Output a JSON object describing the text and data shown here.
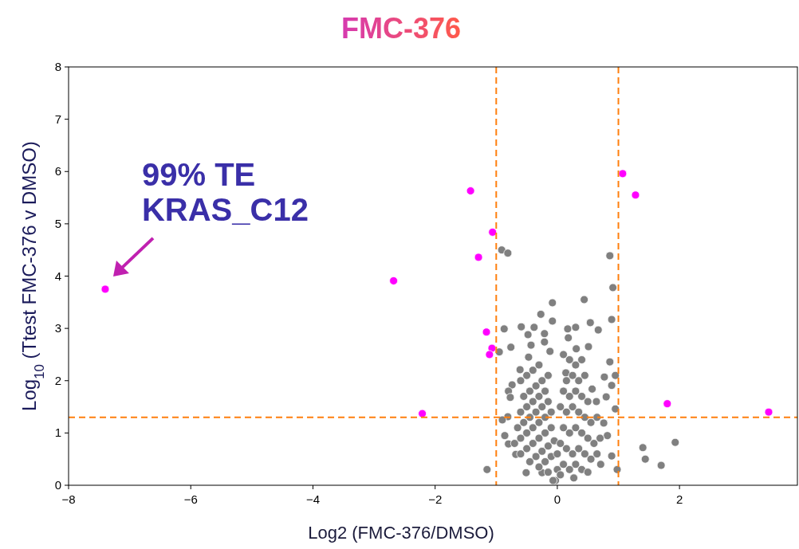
{
  "chart_data": {
    "type": "scatter",
    "title": "FMC-376",
    "xlabel": "Log2 (FMC-376/DMSO)",
    "ylabel": "Log$_{10}$ (Ttest FMC-376 v DMSO)",
    "annotations": [
      {
        "text": "99% TE\nKRAS_C12",
        "x": -7.4,
        "y": 3.75
      }
    ],
    "xlim": [
      -8,
      3.93
    ],
    "ylim": [
      0,
      8
    ],
    "xticks": [
      {
        "value": -8,
        "label": "−8"
      },
      {
        "value": -6,
        "label": "−6"
      },
      {
        "value": -4,
        "label": "−4"
      },
      {
        "value": -2,
        "label": "−2"
      },
      0,
      2
    ],
    "yticks": [
      0,
      1,
      2,
      3,
      4,
      5,
      6,
      7,
      8
    ],
    "grid": false,
    "marker": "circle",
    "ref_lines": [
      {
        "axis": "x",
        "value": -1,
        "color": "#ff7f0e",
        "line_style": "dashed"
      },
      {
        "axis": "x",
        "value": 1,
        "color": "#ff7f0e",
        "line_style": "dashed"
      },
      {
        "axis": "y",
        "value": 1.3,
        "color": "#ff7f0e",
        "line_style": "dashed"
      }
    ],
    "series": [
      {
        "color": "#808080",
        "x": [
          -0.91,
          -0.81,
          -0.08,
          -0.27,
          -0.08,
          -0.87,
          -0.59,
          -0.38,
          -0.48,
          -0.21,
          -0.21,
          -0.76,
          -0.95,
          -0.43,
          -0.47,
          -0.12,
          -0.81,
          -0.9,
          -0.86,
          -1.15,
          -0.74,
          -0.8,
          -0.77,
          -0.61,
          -0.8,
          -0.68,
          -0.51,
          -0.25,
          -0.03,
          0.86,
          0.91,
          0.44,
          0.89,
          0.54,
          0.67,
          0.17,
          0.3,
          0.51,
          0.86,
          0.77,
          0.95,
          0.89,
          0.8,
          0.95,
          0.82,
          0.89,
          0.71,
          0.98,
          0.14,
          0.57,
          0.64,
          0.76,
          0.27,
          -0.07,
          0.18,
          0.31,
          1.4,
          1.44,
          1.7,
          1.93,
          -0.6,
          -0.5,
          -0.4,
          -0.3,
          -0.55,
          -0.45,
          -0.35,
          -0.25,
          -0.15,
          -0.6,
          -0.5,
          -0.4,
          -0.3,
          -0.2,
          -0.65,
          -0.55,
          -0.45,
          -0.35,
          -0.25,
          -0.15,
          -0.7,
          -0.6,
          -0.5,
          -0.4,
          -0.3,
          -0.2,
          -0.1,
          -0.6,
          -0.5,
          -0.4,
          -0.3,
          -0.2,
          -0.1,
          -0.45,
          -0.35,
          -0.25,
          -0.15,
          -0.05,
          -0.3,
          -0.2,
          -0.1,
          -0.15,
          0.1,
          0.2,
          0.3,
          0.4,
          0.15,
          0.25,
          0.35,
          0.45,
          0.1,
          0.2,
          0.3,
          0.4,
          0.5,
          0.05,
          0.15,
          0.25,
          0.35,
          0.45,
          0.55,
          0.65,
          0.1,
          0.2,
          0.3,
          0.4,
          0.5,
          0.6,
          0.7,
          0.05,
          0.15,
          0.25,
          0.35,
          0.45,
          0.55,
          0.65,
          0.1,
          0.2,
          0.3,
          0.4,
          0.5,
          0.0,
          0.05,
          0.0
        ],
        "values": [
          4.5,
          4.44,
          3.49,
          3.27,
          3.14,
          2.99,
          3.03,
          3.02,
          2.88,
          2.9,
          2.74,
          2.64,
          2.55,
          2.68,
          2.45,
          2.56,
          1.31,
          1.25,
          0.95,
          0.3,
          1.92,
          1.8,
          1.68,
          2.21,
          0.79,
          0.59,
          0.24,
          0.24,
          0.09,
          4.39,
          3.78,
          3.55,
          3.17,
          3.11,
          2.97,
          2.99,
          3.02,
          2.65,
          2.36,
          2.07,
          2.1,
          1.91,
          1.69,
          1.46,
          0.95,
          0.56,
          0.4,
          0.3,
          2.15,
          1.84,
          1.6,
          1.19,
          0.14,
          0.09,
          2.82,
          2.61,
          0.72,
          0.5,
          0.38,
          0.82,
          2.0,
          2.1,
          2.2,
          2.3,
          1.7,
          1.8,
          1.9,
          2.0,
          2.1,
          1.4,
          1.5,
          1.6,
          1.7,
          1.8,
          1.1,
          1.2,
          1.3,
          1.4,
          1.5,
          1.6,
          0.8,
          0.9,
          1.0,
          1.1,
          1.2,
          1.3,
          1.4,
          0.6,
          0.7,
          0.8,
          0.9,
          1.0,
          1.1,
          0.45,
          0.55,
          0.65,
          0.75,
          0.85,
          0.35,
          0.45,
          0.55,
          0.25,
          2.5,
          2.4,
          2.3,
          2.4,
          2.0,
          2.1,
          2.0,
          2.1,
          1.8,
          1.7,
          1.8,
          1.7,
          1.6,
          1.5,
          1.4,
          1.5,
          1.4,
          1.3,
          1.2,
          1.3,
          1.1,
          1.0,
          1.1,
          1.0,
          0.9,
          0.8,
          0.9,
          0.8,
          0.7,
          0.6,
          0.7,
          0.6,
          0.5,
          0.6,
          0.4,
          0.3,
          0.4,
          0.3,
          0.25,
          0.3,
          0.2,
          0.6
        ]
      },
      {
        "color": "#ff00ff",
        "x": [
          -7.4,
          -2.68,
          -2.21,
          -1.42,
          -1.06,
          -1.29,
          -1.16,
          -1.07,
          -1.11,
          1.07,
          1.28,
          1.8,
          3.46
        ],
        "values": [
          3.75,
          3.91,
          1.37,
          5.63,
          4.84,
          4.36,
          2.93,
          2.62,
          2.5,
          5.96,
          5.55,
          1.56,
          1.4
        ]
      }
    ]
  }
}
